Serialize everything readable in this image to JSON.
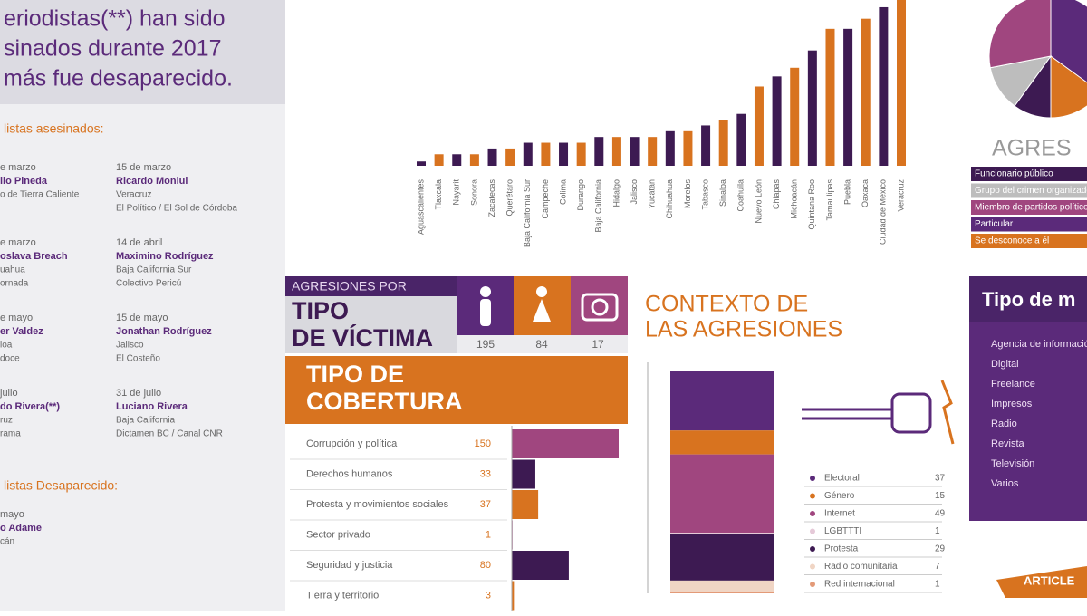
{
  "header": {
    "lines": [
      "eriodistas(**) han sido",
      "sinados durante 2017",
      "más fue desaparecido."
    ]
  },
  "murdered": {
    "title": "listas asesinados:",
    "entries": [
      {
        "date": "e marzo",
        "name": "lio Pineda",
        "lines": [
          "o de Tierra Caliente"
        ]
      },
      {
        "date": "15 de marzo",
        "name": "Ricardo Monlui",
        "lines": [
          "Veracruz",
          "El Político / El Sol de Córdoba"
        ]
      },
      {
        "date": "e marzo",
        "name": "oslava Breach",
        "lines": [
          "uahua",
          "ornada"
        ]
      },
      {
        "date": "14 de abril",
        "name": "Maximino Rodríguez",
        "lines": [
          "Baja California Sur",
          "Colectivo Pericú"
        ]
      },
      {
        "date": "e mayo",
        "name": "er Valdez",
        "lines": [
          "loa",
          "doce"
        ]
      },
      {
        "date": "15 de mayo",
        "name": "Jonathan Rodríguez",
        "lines": [
          "Jalisco",
          "El Costeño"
        ]
      },
      {
        "date": "julio",
        "name": "do Rivera(**)",
        "lines": [
          "ruz",
          "rama"
        ]
      },
      {
        "date": "31 de julio",
        "name": "Luciano Rivera",
        "lines": [
          "Baja California",
          "Dictamen BC / Canal CNR"
        ]
      }
    ]
  },
  "missing": {
    "title": "listas Desaparecido:",
    "date": "mayo",
    "name": "o Adame",
    "lines": [
      "cán"
    ]
  },
  "chart_data": {
    "type": "bar",
    "categories": [
      "Aguascalientes",
      "Tlaxcala",
      "Nayarit",
      "Sonora",
      "Zacatecas",
      "Querétaro",
      "Baja California Sur",
      "Campeche",
      "Colima",
      "Durango",
      "Baja California",
      "Hidalgo",
      "Jalisco",
      "Yucatán",
      "Chihuahua",
      "Morelos",
      "Tabasco",
      "Sinaloa",
      "Coahuila",
      "Nuevo León",
      "Chiapas",
      "Michoacán",
      "Quintana Roo",
      "Tamaulipas",
      "Puebla",
      "Oaxaca",
      "Ciudad de México",
      "Veracruz"
    ],
    "values": [
      3,
      8,
      8,
      8,
      12,
      12,
      16,
      16,
      16,
      16,
      20,
      20,
      20,
      20,
      24,
      24,
      28,
      32,
      36,
      55,
      62,
      68,
      80,
      95,
      95,
      102,
      110,
      115
    ],
    "colors": [
      "#3d1a52",
      "#d8731f"
    ],
    "ylim": [
      0,
      115
    ]
  },
  "victims": {
    "kicker": "AGRESIONES POR",
    "title_lines": [
      "TIPO",
      "DE VÍCTIMA"
    ],
    "values": [
      195,
      84,
      17
    ]
  },
  "coverage": {
    "title_lines": [
      "TIPO DE",
      "COBERTURA"
    ],
    "rows": [
      {
        "label": "Corrupción y política",
        "value": 150
      },
      {
        "label": "Derechos humanos",
        "value": 33
      },
      {
        "label": "Protesta y movimientos sociales",
        "value": 37
      },
      {
        "label": "Sector privado",
        "value": 1
      },
      {
        "label": "Seguridad y justicia",
        "value": 80
      },
      {
        "label": "Tierra y territorio",
        "value": 3
      }
    ],
    "colors": [
      "#a0467f",
      "#3d1a52",
      "#d8731f",
      "#a0467f",
      "#3d1a52",
      "#d8731f"
    ],
    "max": 150
  },
  "context": {
    "title_lines": [
      "CONTEXTO DE",
      "LAS AGRESIONES"
    ],
    "rows": [
      {
        "label": "Electoral",
        "value": 37,
        "color": "#5b2a7a"
      },
      {
        "label": "Género",
        "value": 15,
        "color": "#d8731f"
      },
      {
        "label": "Internet",
        "value": 49,
        "color": "#a0467f"
      },
      {
        "label": "LGBTTTI",
        "value": 1,
        "color": "#e5c9d8"
      },
      {
        "label": "Protesta",
        "value": 29,
        "color": "#3d1a52"
      },
      {
        "label": "Radio comunitaria",
        "value": 7,
        "color": "#f0d5c4"
      },
      {
        "label": "Red internacional",
        "value": 1,
        "color": "#e39a78"
      }
    ]
  },
  "aggressors": {
    "title": "AGRES",
    "rows": [
      "Funcionario público",
      "Grupo del crimen organizado",
      "Miembro de partidos políticos",
      "Particular",
      "Se desconoce a él"
    ],
    "values": [
      35,
      15,
      10,
      12,
      28
    ],
    "colors": [
      "#5b2a7a",
      "#d8731f",
      "#3d1a52",
      "#bdbdbd",
      "#a0467f"
    ]
  },
  "media": {
    "title": "Tipo de m",
    "rows": [
      "Agencia de información",
      "Digital",
      "Freelance",
      "Impresos",
      "Radio",
      "Revista",
      "Televisión",
      "Varios"
    ]
  },
  "ribbon": "ARTICLE"
}
